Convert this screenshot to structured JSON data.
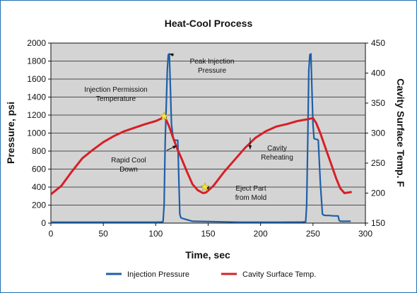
{
  "chart_data": {
    "type": "line",
    "title": "Heat-Cool Process",
    "xlabel": "Time, sec",
    "ylabel_left": "Pressure, psi",
    "ylabel_right": "Cavity Surface Temp. F",
    "xlim": [
      0,
      300
    ],
    "ylim_left": [
      0,
      2000
    ],
    "ylim_right": [
      150,
      450
    ],
    "x_ticks": [
      "0",
      "50",
      "100",
      "150",
      "200",
      "250",
      "300"
    ],
    "y_left_ticks": [
      "0",
      "200",
      "400",
      "600",
      "800",
      "1000",
      "1200",
      "1400",
      "1600",
      "1800",
      "2000"
    ],
    "y_right_ticks": [
      "150",
      "200",
      "250",
      "300",
      "350",
      "400",
      "450"
    ],
    "grid": "horizontal",
    "legend_position": "bottom",
    "series": [
      {
        "name": "Injection Pressure",
        "axis": "left",
        "color": "#1f5fa8",
        "x": [
          0,
          100,
          105,
          107,
          108,
          109,
          111,
          112,
          113,
          114,
          115,
          116,
          117,
          119,
          120,
          121,
          122,
          123,
          124,
          126,
          135,
          180,
          220,
          240,
          243,
          244,
          245,
          246,
          247,
          248,
          249,
          250,
          251,
          253,
          254,
          255,
          256,
          257,
          259,
          260,
          262,
          265,
          270,
          274,
          275,
          276,
          280,
          286
        ],
        "values": [
          10,
          10,
          12,
          15,
          200,
          900,
          1700,
          1870,
          1880,
          1500,
          1100,
          1000,
          930,
          920,
          920,
          920,
          500,
          100,
          60,
          50,
          20,
          10,
          10,
          12,
          15,
          200,
          900,
          1700,
          1870,
          1880,
          1500,
          1100,
          940,
          930,
          930,
          920,
          700,
          450,
          100,
          90,
          85,
          85,
          80,
          80,
          30,
          20,
          20,
          20
        ]
      },
      {
        "name": "Cavity Surface Temp.",
        "axis": "right",
        "color": "#d71f26",
        "x": [
          0,
          10,
          20,
          30,
          40,
          50,
          60,
          70,
          80,
          90,
          100,
          105,
          108,
          110,
          113,
          116,
          120,
          125,
          130,
          135,
          140,
          145,
          148,
          155,
          165,
          175,
          185,
          195,
          205,
          215,
          225,
          235,
          245,
          250,
          253,
          257,
          262,
          267,
          272,
          276,
          280,
          284,
          287
        ],
        "values": [
          198,
          212,
          236,
          258,
          272,
          285,
          295,
          303,
          309,
          315,
          320,
          324,
          328,
          322,
          310,
          295,
          276,
          256,
          235,
          215,
          205,
          200,
          201,
          212,
          235,
          255,
          275,
          292,
          303,
          311,
          315,
          320,
          323,
          325,
          317,
          300,
          275,
          250,
          225,
          208,
          200,
          201,
          202
        ]
      }
    ],
    "annotations": [
      {
        "lines": [
          "Peak Injection",
          "Pressure"
        ],
        "x": 113,
        "y_left": 1880,
        "arrow": true
      },
      {
        "lines": [
          "Injection Permission",
          "Temperature"
        ],
        "x": 108,
        "y_left": 1186,
        "marker": "star"
      },
      {
        "lines": [
          "Rapid Cool",
          "Down"
        ],
        "x": 120,
        "y_left": 860,
        "arrow": true
      },
      {
        "lines": [
          "Cavity",
          "Reheating"
        ],
        "x": 190,
        "y_left": 820,
        "arrow": true
      },
      {
        "lines": [
          "Eject Part",
          "from Mold"
        ],
        "x": 147,
        "y_left": 400,
        "marker": "star",
        "arrow": true
      }
    ]
  }
}
